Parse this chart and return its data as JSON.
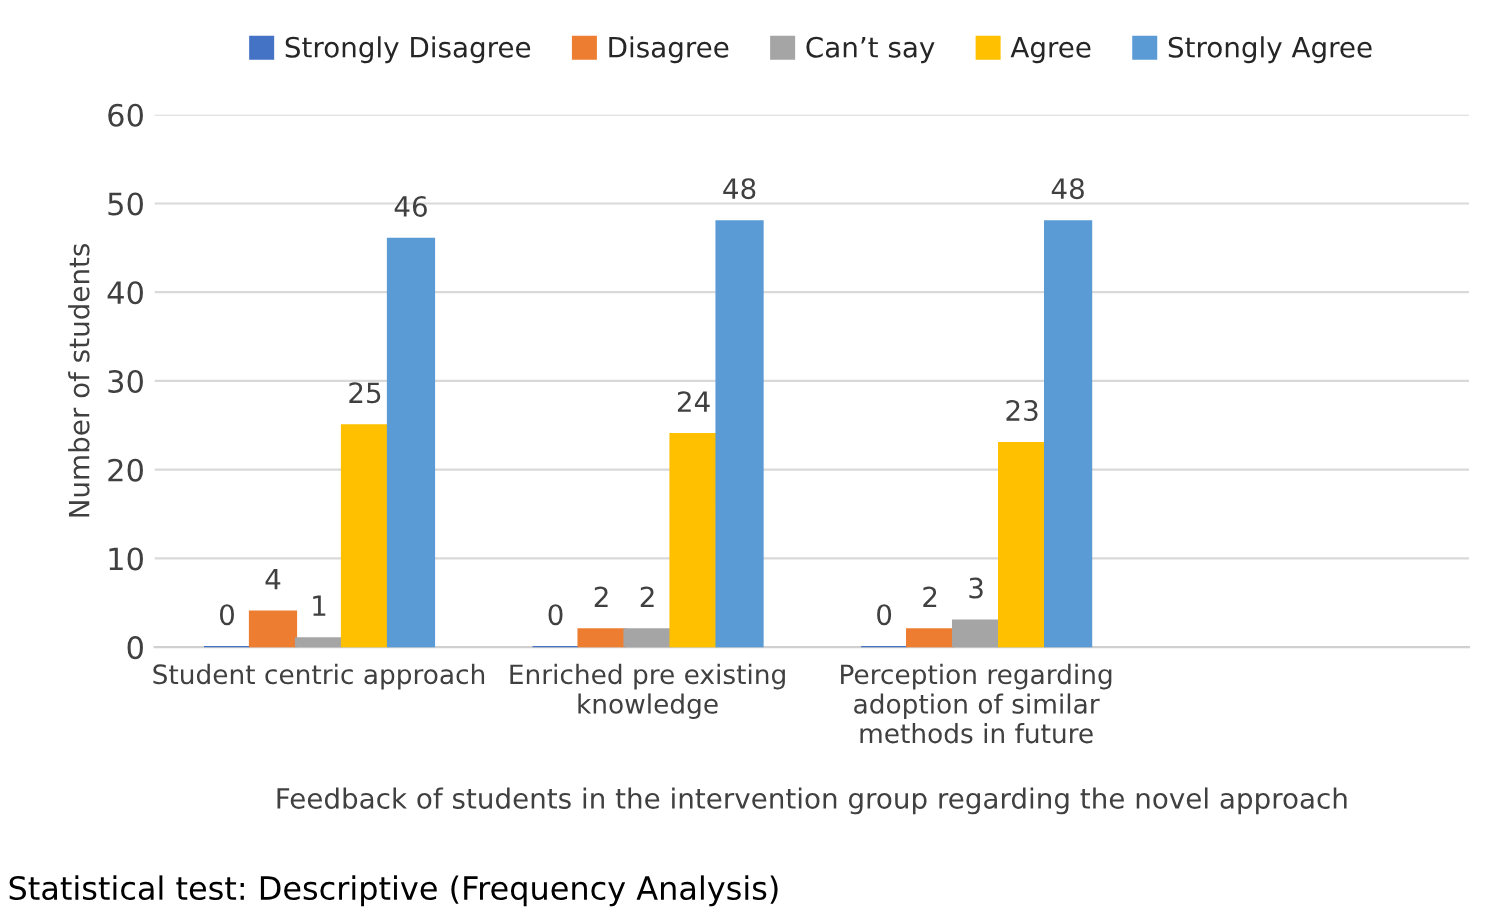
{
  "chart_data": {
    "type": "bar",
    "categories": [
      "Student centric approach",
      "Enriched pre existing\nknowledge",
      "Perception regarding\nadoption of similar\nmethods in future",
      null
    ],
    "series": [
      {
        "name": "Strongly Disagree",
        "color": "#4472c4",
        "values": [
          0,
          0,
          0,
          null
        ]
      },
      {
        "name": "Disagree",
        "color": "#ed7d31",
        "values": [
          4,
          2,
          2,
          null
        ]
      },
      {
        "name": "Can’t say",
        "color": "#a5a5a5",
        "values": [
          1,
          2,
          3,
          null
        ]
      },
      {
        "name": "Agree",
        "color": "#ffc000",
        "values": [
          25,
          24,
          23,
          null
        ]
      },
      {
        "name": "Strongly Agree",
        "color": "#5b9bd5",
        "values": [
          46,
          48,
          48,
          null
        ]
      }
    ],
    "xlabel": "Feedback of students in the intervention group regarding the novel approach",
    "ylabel": "Number of students",
    "ylim": [
      0,
      60
    ],
    "yticks": [
      0,
      10,
      20,
      30,
      40,
      50,
      60
    ],
    "grid": "y",
    "legend": "top",
    "data_labels": true,
    "annotations": [
      "Statistical test: Descriptive (Frequency Analysis)"
    ]
  }
}
